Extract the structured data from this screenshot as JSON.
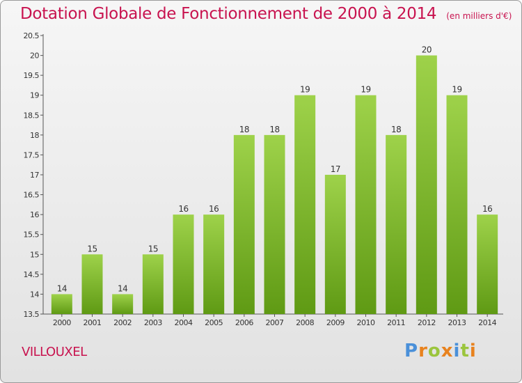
{
  "header": {
    "title": "Dotation Globale de Fonctionnement de 2000 à 2014",
    "unit": "(en milliers d'€)"
  },
  "commune": "VILLOUXEL",
  "logo": {
    "letters": [
      "P",
      "r",
      "o",
      "x",
      "i",
      "t",
      "i"
    ],
    "colors": [
      "#4a90d9",
      "#e8821e",
      "#9bc53d",
      "#e8821e",
      "#4a90d9",
      "#9bc53d",
      "#e8821e"
    ]
  },
  "colors": {
    "bar_light": "#9ed24a",
    "bar_dark": "#5f9a14",
    "title": "#c8134f"
  },
  "chart_data": {
    "type": "bar",
    "categories": [
      "2000",
      "2001",
      "2002",
      "2003",
      "2004",
      "2005",
      "2006",
      "2007",
      "2008",
      "2009",
      "2010",
      "2011",
      "2012",
      "2013",
      "2014"
    ],
    "values": [
      14,
      15,
      14,
      15,
      16,
      16,
      18,
      18,
      19,
      17,
      19,
      18,
      20,
      19,
      16
    ],
    "labels": [
      "14",
      "15",
      "14",
      "15",
      "16",
      "16",
      "18",
      "18",
      "19",
      "17",
      "19",
      "18",
      "20",
      "19",
      "16"
    ],
    "ylim": [
      13.5,
      20.5
    ],
    "yticks": [
      "13.5",
      "14",
      "14.5",
      "15",
      "15.5",
      "16",
      "16.5",
      "17",
      "17.5",
      "18",
      "18.5",
      "19",
      "19.5",
      "20",
      "20.5"
    ],
    "title": "Dotation Globale de Fonctionnement de 2000 à 2014",
    "xlabel": "",
    "ylabel": "",
    "grid": false
  }
}
